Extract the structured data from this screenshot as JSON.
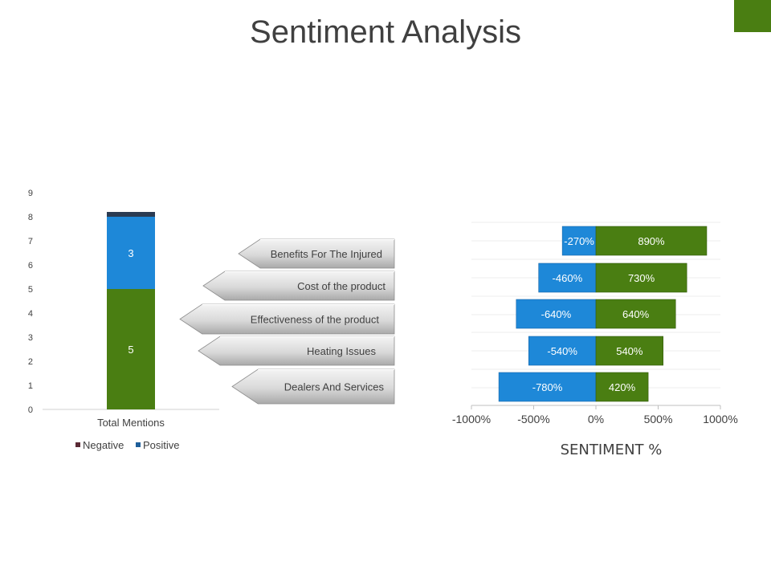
{
  "page": {
    "title": "Sentiment Analysis",
    "accent_color": "#4a7e12"
  },
  "chart_data": [
    {
      "type": "bar",
      "stacked": true,
      "categories": [
        "Total Mentions"
      ],
      "series": [
        {
          "name": "Negative",
          "values": [
            0.2
          ],
          "color": "#2b3b52",
          "legend_color": "#5a2a35"
        },
        {
          "name": "Positive",
          "values": [
            3
          ],
          "color": "#1e88d8",
          "legend_color": "#1f5f9a"
        },
        {
          "name": "",
          "values": [
            5
          ],
          "color": "#4a7e12"
        }
      ],
      "segment_labels": [
        "",
        "3",
        "5"
      ],
      "ylim": [
        0,
        9
      ],
      "yticks": [
        "0",
        "1",
        "2",
        "3",
        "4",
        "5",
        "6",
        "7",
        "8",
        "9"
      ],
      "legend": "bottom",
      "grid": false
    },
    {
      "type": "bar",
      "orientation": "horizontal",
      "diverging": true,
      "categories": [
        "Benefits For The Injured",
        "Cost of the product",
        "Effectiveness of the product",
        "Heating Issues",
        "Dealers And Services"
      ],
      "series": [
        {
          "name": "",
          "values": [
            -270,
            -460,
            -640,
            -540,
            -780
          ],
          "labels": [
            "-270%",
            "-460%",
            "-640%",
            "-540%",
            "-780%"
          ],
          "color": "#1e88d8"
        },
        {
          "name": "",
          "values": [
            890,
            730,
            640,
            540,
            420
          ],
          "labels": [
            "890%",
            "730%",
            "640%",
            "540%",
            "420%"
          ],
          "color": "#4a7e12"
        }
      ],
      "xlim": [
        -1000,
        1000
      ],
      "xticks": [
        "-1000%",
        "-500%",
        "0%",
        "500%",
        "1000%"
      ],
      "xlabel": "SENTIMENT %",
      "grid": true
    }
  ]
}
